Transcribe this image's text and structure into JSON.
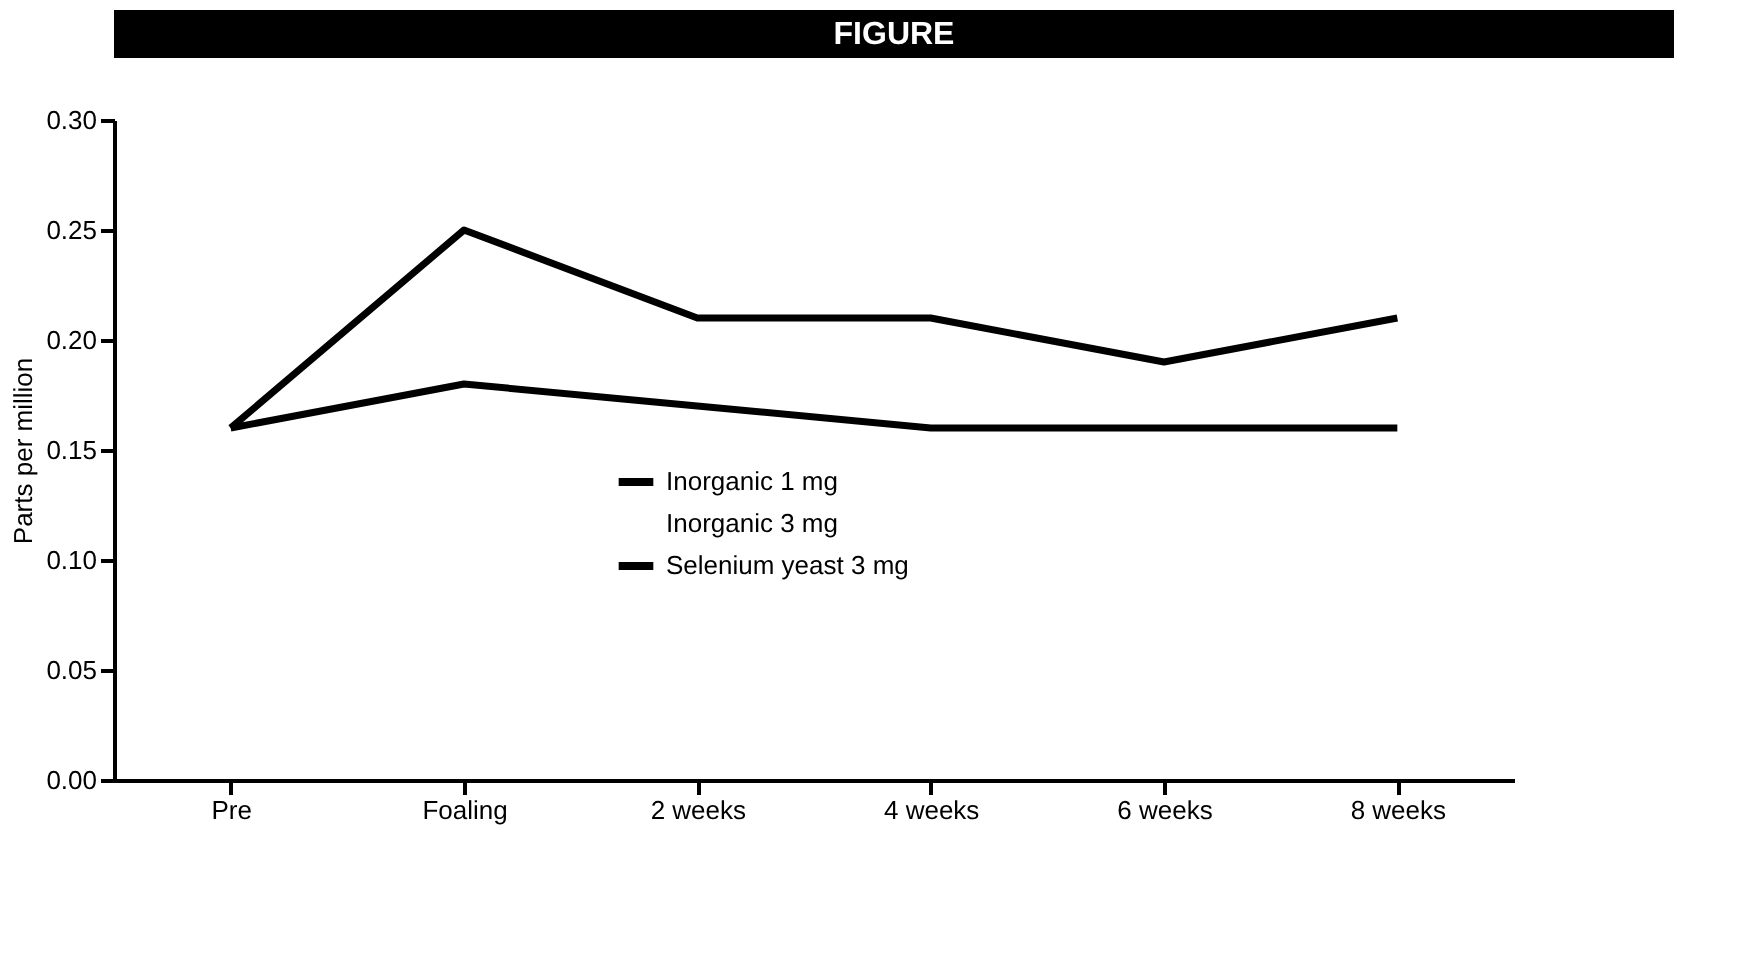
{
  "chart_data": {
    "type": "line",
    "title": "FIGURE",
    "ylabel": "Parts per million",
    "categories": [
      "Pre",
      "Foaling",
      "2 weeks",
      "4 weeks",
      "6 weeks",
      "8 weeks"
    ],
    "series": [
      {
        "name": "Inorganic 1 mg",
        "color": "#000000",
        "values": [
          0.16,
          0.18,
          0.17,
          0.16,
          0.16,
          0.16
        ]
      },
      {
        "name": "Inorganic 3 mg",
        "values": [
          null,
          null,
          null,
          null,
          null,
          null
        ]
      },
      {
        "name": "Selenium yeast 3 mg",
        "color": "#000000",
        "values": [
          0.16,
          0.25,
          0.21,
          0.21,
          0.19,
          0.21
        ]
      }
    ],
    "ylim": [
      0,
      0.3
    ],
    "yticks": [
      {
        "value": 0,
        "label": "0.00"
      },
      0.05,
      {
        "value": 0.1,
        "label": "0.10"
      },
      0.15,
      {
        "value": 0.2,
        "label": "0.20"
      },
      0.25,
      {
        "value": 0.3,
        "label": "0.30"
      }
    ],
    "grid": false,
    "legend": "bottom",
    "marker": "none",
    "line_style": "solid"
  }
}
